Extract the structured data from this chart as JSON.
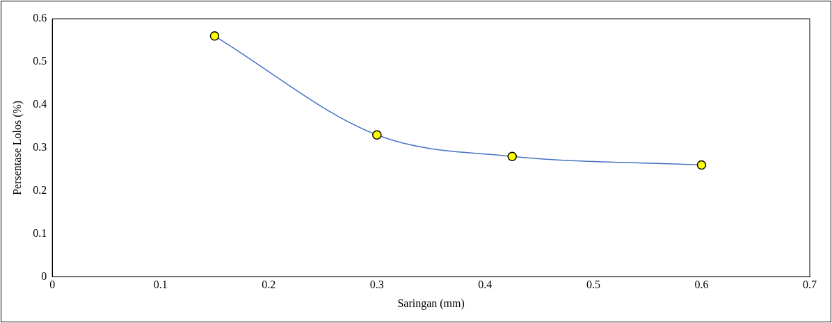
{
  "chart_data": {
    "type": "line",
    "xlabel": "Saringan (mm)",
    "ylabel": "Persentase Lolos (%)",
    "xlim": [
      0,
      0.7
    ],
    "xticks": [
      0,
      0.1,
      0.2,
      0.3,
      0.4,
      0.5,
      0.6,
      0.7
    ],
    "ylim": [
      0,
      0.6
    ],
    "yticks": [
      0,
      0.1,
      0.2,
      0.3,
      0.4,
      0.5,
      0.6
    ],
    "x": [
      0.15,
      0.3,
      0.425,
      0.6
    ],
    "series": [
      {
        "color": "#4472c4",
        "colors": [
          "#ffff00",
          "#ffff00",
          "#ffff00",
          "#ffff00"
        ],
        "values": [
          0.56,
          0.33,
          0.28,
          0.26
        ]
      }
    ],
    "marker": "circle",
    "line_style": "solid",
    "grid": false,
    "legend": false
  }
}
